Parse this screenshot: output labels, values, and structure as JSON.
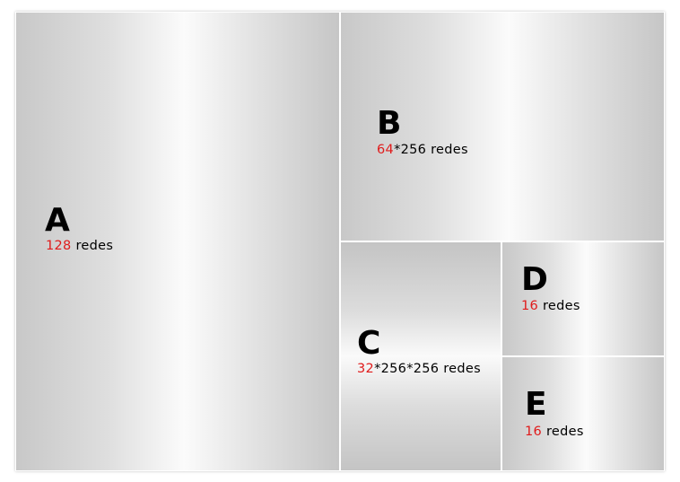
{
  "colors": {
    "highlight": "#e01b1b",
    "text": "#000000",
    "divider": "#ffffff"
  },
  "blocks": [
    {
      "letter": "A",
      "count": "128",
      "suffix": " redes"
    },
    {
      "letter": "B",
      "count": "64",
      "suffix": "*256 redes"
    },
    {
      "letter": "C",
      "count": "32",
      "suffix": "*256*256 redes"
    },
    {
      "letter": "D",
      "count": "16",
      "suffix": " redes"
    },
    {
      "letter": "E",
      "count": "16",
      "suffix": " redes"
    }
  ]
}
